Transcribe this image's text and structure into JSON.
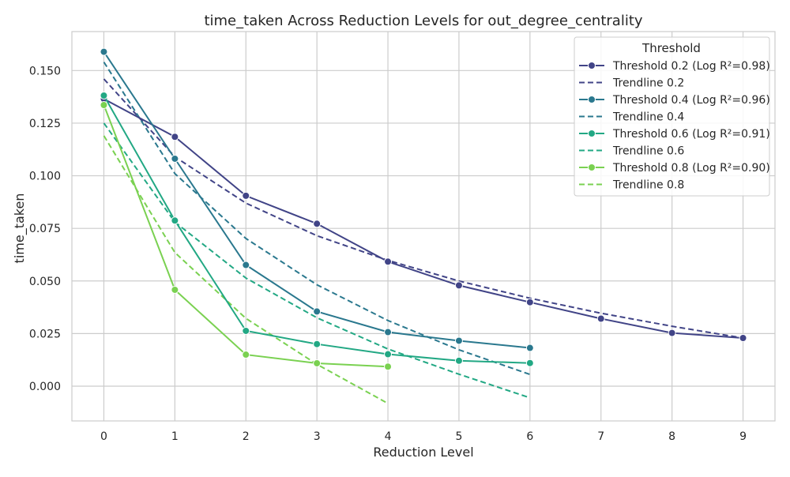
{
  "chart_data": {
    "type": "line",
    "title": "time_taken Across Reduction Levels for out_degree_centrality",
    "xlabel": "Reduction Level",
    "ylabel": "time_taken",
    "xlim": [
      -0.45,
      9.45
    ],
    "ylim": [
      -0.0165,
      0.1685
    ],
    "x_ticks": [
      0,
      1,
      2,
      3,
      4,
      5,
      6,
      7,
      8,
      9
    ],
    "y_ticks": [
      0.0,
      0.025,
      0.05,
      0.075,
      0.1,
      0.125,
      0.15
    ],
    "y_tick_labels": [
      "0.000",
      "0.025",
      "0.050",
      "0.075",
      "0.100",
      "0.125",
      "0.150"
    ],
    "grid": true,
    "legend_title": "Threshold",
    "legend_position": "top-right",
    "series": [
      {
        "name": "Threshold 0.2 (Log R²=0.98)",
        "color": "#414487",
        "x": [
          0,
          1,
          2,
          3,
          4,
          5,
          6,
          7,
          8,
          9
        ],
        "values": [
          0.1365,
          0.1185,
          0.0905,
          0.0772,
          0.0592,
          0.0479,
          0.0399,
          0.0321,
          0.0253,
          0.0229
        ],
        "trend_name": "Trendline 0.2",
        "trend_x": [
          0,
          1,
          2,
          3,
          4,
          5,
          6,
          7,
          8,
          9
        ],
        "trend_values": [
          0.146,
          0.109,
          0.087,
          0.0715,
          0.0598,
          0.05,
          0.0418,
          0.0347,
          0.0285,
          0.0229
        ]
      },
      {
        "name": "Threshold 0.4 (Log R²=0.96)",
        "color": "#2a788e",
        "x": [
          0,
          1,
          2,
          3,
          4,
          5,
          6
        ],
        "values": [
          0.1589,
          0.1081,
          0.0576,
          0.0355,
          0.0257,
          0.0216,
          0.0182
        ],
        "trend_name": "Trendline 0.4",
        "trend_x": [
          0,
          1,
          2,
          3,
          4,
          5,
          6
        ],
        "trend_values": [
          0.154,
          0.101,
          0.0702,
          0.0482,
          0.0312,
          0.0173,
          0.0056
        ]
      },
      {
        "name": "Threshold 0.6 (Log R²=0.91)",
        "color": "#22a884",
        "x": [
          0,
          1,
          2,
          3,
          4,
          5,
          6
        ],
        "values": [
          0.1381,
          0.0787,
          0.0263,
          0.02,
          0.0152,
          0.0121,
          0.011
        ],
        "trend_name": "Trendline 0.6",
        "trend_x": [
          0,
          1,
          2,
          3,
          4,
          5,
          6
        ],
        "trend_values": [
          0.125,
          0.078,
          0.0514,
          0.0325,
          0.0177,
          0.0057,
          -0.0055
        ]
      },
      {
        "name": "Threshold 0.8 (Log R²=0.90)",
        "color": "#7ad151",
        "x": [
          0,
          1,
          2,
          3,
          4
        ],
        "values": [
          0.1336,
          0.0458,
          0.015,
          0.0109,
          0.0093
        ],
        "trend_name": "Trendline 0.8",
        "trend_x": [
          0,
          1,
          2,
          3,
          4
        ],
        "trend_values": [
          0.119,
          0.0635,
          0.0322,
          0.0104,
          -0.0082
        ]
      }
    ]
  }
}
